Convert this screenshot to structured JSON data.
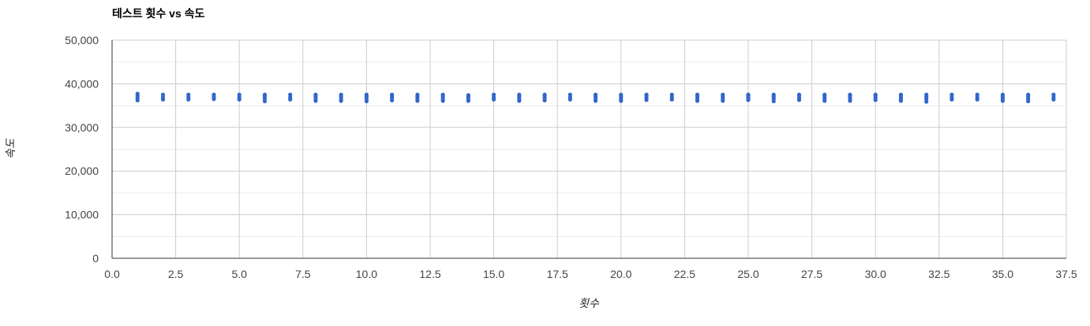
{
  "chart_data": {
    "type": "scatter",
    "title": "테스트 횟수 vs 속도",
    "xlabel": "횟수",
    "ylabel": "속도",
    "xlim": [
      0,
      37.5
    ],
    "ylim": [
      0,
      50000
    ],
    "x_ticks": [
      "0.0",
      "2.5",
      "5.0",
      "7.5",
      "10.0",
      "12.5",
      "15.0",
      "17.5",
      "20.0",
      "22.5",
      "25.0",
      "27.5",
      "30.0",
      "32.5",
      "35.0",
      "37.5"
    ],
    "y_ticks": [
      "0",
      "10,000",
      "20,000",
      "30,000",
      "40,000",
      "50,000"
    ],
    "grid": true,
    "legend": "none",
    "point_color": "#3366cc",
    "series": [
      {
        "points": [
          {
            "x": 1,
            "y": 36200
          },
          {
            "x": 1,
            "y": 36700
          },
          {
            "x": 1,
            "y": 37200
          },
          {
            "x": 1,
            "y": 37700
          },
          {
            "x": 2,
            "y": 36400
          },
          {
            "x": 2,
            "y": 36900
          },
          {
            "x": 2,
            "y": 37500
          },
          {
            "x": 3,
            "y": 36400
          },
          {
            "x": 3,
            "y": 36900
          },
          {
            "x": 3,
            "y": 37500
          },
          {
            "x": 4,
            "y": 36500
          },
          {
            "x": 4,
            "y": 37000
          },
          {
            "x": 4,
            "y": 37500
          },
          {
            "x": 5,
            "y": 36400
          },
          {
            "x": 5,
            "y": 36900
          },
          {
            "x": 5,
            "y": 37500
          },
          {
            "x": 6,
            "y": 36000
          },
          {
            "x": 6,
            "y": 36600
          },
          {
            "x": 6,
            "y": 37100
          },
          {
            "x": 6,
            "y": 37500
          },
          {
            "x": 7,
            "y": 36400
          },
          {
            "x": 7,
            "y": 36900
          },
          {
            "x": 7,
            "y": 37500
          },
          {
            "x": 8,
            "y": 36100
          },
          {
            "x": 8,
            "y": 36600
          },
          {
            "x": 8,
            "y": 37100
          },
          {
            "x": 8,
            "y": 37500
          },
          {
            "x": 9,
            "y": 36100
          },
          {
            "x": 9,
            "y": 36600
          },
          {
            "x": 9,
            "y": 37100
          },
          {
            "x": 9,
            "y": 37500
          },
          {
            "x": 10,
            "y": 36000
          },
          {
            "x": 10,
            "y": 36600
          },
          {
            "x": 10,
            "y": 37100
          },
          {
            "x": 10,
            "y": 37500
          },
          {
            "x": 11,
            "y": 36200
          },
          {
            "x": 11,
            "y": 36700
          },
          {
            "x": 11,
            "y": 37200
          },
          {
            "x": 11,
            "y": 37500
          },
          {
            "x": 12,
            "y": 36100
          },
          {
            "x": 12,
            "y": 36600
          },
          {
            "x": 12,
            "y": 37100
          },
          {
            "x": 12,
            "y": 37500
          },
          {
            "x": 13,
            "y": 36100
          },
          {
            "x": 13,
            "y": 36600
          },
          {
            "x": 13,
            "y": 37100
          },
          {
            "x": 13,
            "y": 37500
          },
          {
            "x": 14,
            "y": 36100
          },
          {
            "x": 14,
            "y": 36600
          },
          {
            "x": 14,
            "y": 37100
          },
          {
            "x": 14,
            "y": 37400
          },
          {
            "x": 15,
            "y": 36400
          },
          {
            "x": 15,
            "y": 36900
          },
          {
            "x": 15,
            "y": 37500
          },
          {
            "x": 16,
            "y": 36100
          },
          {
            "x": 16,
            "y": 36600
          },
          {
            "x": 16,
            "y": 37100
          },
          {
            "x": 16,
            "y": 37500
          },
          {
            "x": 17,
            "y": 36200
          },
          {
            "x": 17,
            "y": 36700
          },
          {
            "x": 17,
            "y": 37200
          },
          {
            "x": 17,
            "y": 37500
          },
          {
            "x": 18,
            "y": 36400
          },
          {
            "x": 18,
            "y": 36900
          },
          {
            "x": 18,
            "y": 37500
          },
          {
            "x": 19,
            "y": 36100
          },
          {
            "x": 19,
            "y": 36600
          },
          {
            "x": 19,
            "y": 37100
          },
          {
            "x": 19,
            "y": 37500
          },
          {
            "x": 20,
            "y": 36100
          },
          {
            "x": 20,
            "y": 36600
          },
          {
            "x": 20,
            "y": 37100
          },
          {
            "x": 20,
            "y": 37500
          },
          {
            "x": 21,
            "y": 36300
          },
          {
            "x": 21,
            "y": 36800
          },
          {
            "x": 21,
            "y": 37300
          },
          {
            "x": 21,
            "y": 37500
          },
          {
            "x": 22,
            "y": 36400
          },
          {
            "x": 22,
            "y": 36900
          },
          {
            "x": 22,
            "y": 37500
          },
          {
            "x": 23,
            "y": 36100
          },
          {
            "x": 23,
            "y": 36600
          },
          {
            "x": 23,
            "y": 37100
          },
          {
            "x": 23,
            "y": 37500
          },
          {
            "x": 24,
            "y": 36100
          },
          {
            "x": 24,
            "y": 36600
          },
          {
            "x": 24,
            "y": 37100
          },
          {
            "x": 24,
            "y": 37500
          },
          {
            "x": 25,
            "y": 36300
          },
          {
            "x": 25,
            "y": 36800
          },
          {
            "x": 25,
            "y": 37300
          },
          {
            "x": 25,
            "y": 37500
          },
          {
            "x": 26,
            "y": 36000
          },
          {
            "x": 26,
            "y": 36600
          },
          {
            "x": 26,
            "y": 37100
          },
          {
            "x": 26,
            "y": 37500
          },
          {
            "x": 27,
            "y": 36300
          },
          {
            "x": 27,
            "y": 36800
          },
          {
            "x": 27,
            "y": 37300
          },
          {
            "x": 27,
            "y": 37500
          },
          {
            "x": 28,
            "y": 36100
          },
          {
            "x": 28,
            "y": 36600
          },
          {
            "x": 28,
            "y": 37100
          },
          {
            "x": 28,
            "y": 37500
          },
          {
            "x": 29,
            "y": 36100
          },
          {
            "x": 29,
            "y": 36600
          },
          {
            "x": 29,
            "y": 37100
          },
          {
            "x": 29,
            "y": 37500
          },
          {
            "x": 30,
            "y": 36300
          },
          {
            "x": 30,
            "y": 36800
          },
          {
            "x": 30,
            "y": 37300
          },
          {
            "x": 30,
            "y": 37500
          },
          {
            "x": 31,
            "y": 36100
          },
          {
            "x": 31,
            "y": 36600
          },
          {
            "x": 31,
            "y": 37100
          },
          {
            "x": 31,
            "y": 37500
          },
          {
            "x": 32,
            "y": 35900
          },
          {
            "x": 32,
            "y": 36500
          },
          {
            "x": 32,
            "y": 37000
          },
          {
            "x": 32,
            "y": 37500
          },
          {
            "x": 33,
            "y": 36400
          },
          {
            "x": 33,
            "y": 36900
          },
          {
            "x": 33,
            "y": 37500
          },
          {
            "x": 34,
            "y": 36400
          },
          {
            "x": 34,
            "y": 36900
          },
          {
            "x": 34,
            "y": 37500
          },
          {
            "x": 35,
            "y": 36100
          },
          {
            "x": 35,
            "y": 36600
          },
          {
            "x": 35,
            "y": 37100
          },
          {
            "x": 35,
            "y": 37500
          },
          {
            "x": 36,
            "y": 36000
          },
          {
            "x": 36,
            "y": 36600
          },
          {
            "x": 36,
            "y": 37100
          },
          {
            "x": 36,
            "y": 37500
          },
          {
            "x": 37,
            "y": 36400
          },
          {
            "x": 37,
            "y": 36900
          },
          {
            "x": 37,
            "y": 37500
          }
        ]
      }
    ]
  }
}
